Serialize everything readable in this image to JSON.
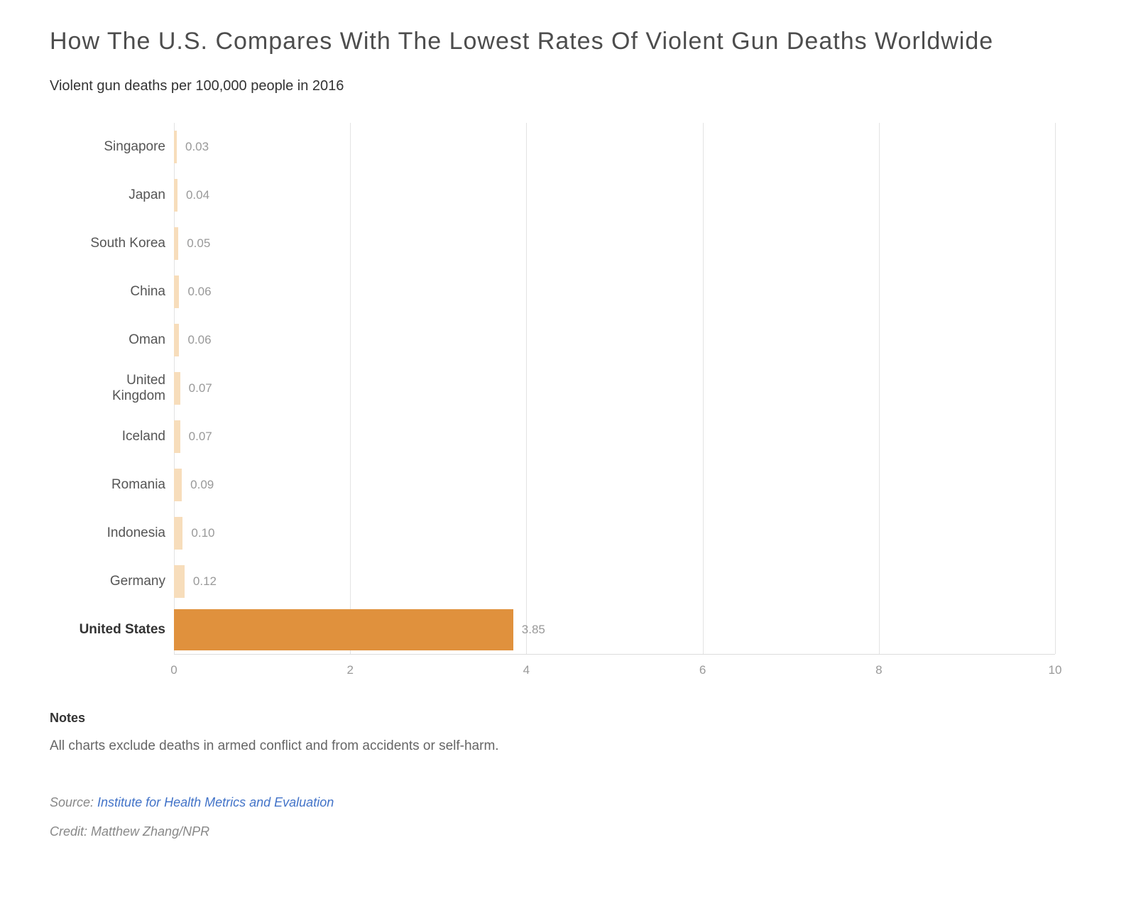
{
  "header": {
    "title": "How The U.S. Compares With The Lowest Rates Of Violent Gun Deaths Worldwide",
    "subtitle": "Violent gun deaths per 100,000 people in 2016"
  },
  "chart_data": {
    "type": "bar",
    "orientation": "horizontal",
    "title": "How The U.S. Compares With The Lowest Rates Of Violent Gun Deaths Worldwide",
    "xlabel": "",
    "ylabel": "",
    "categories": [
      "Singapore",
      "Japan",
      "South Korea",
      "China",
      "Oman",
      "United Kingdom",
      "Iceland",
      "Romania",
      "Indonesia",
      "Germany",
      "United States"
    ],
    "values": [
      0.03,
      0.04,
      0.05,
      0.06,
      0.06,
      0.07,
      0.07,
      0.09,
      0.1,
      0.12,
      3.85
    ],
    "value_labels": [
      "0.03",
      "0.04",
      "0.05",
      "0.06",
      "0.06",
      "0.07",
      "0.07",
      "0.09",
      "0.10",
      "0.12",
      "3.85"
    ],
    "highlight_category": "United States",
    "xlim": [
      0,
      10
    ],
    "x_ticks": [
      0,
      2,
      4,
      6,
      8,
      10
    ],
    "x_tick_labels": [
      "0",
      "2",
      "4",
      "6",
      "8",
      "10"
    ],
    "grid": true,
    "legend": "none",
    "bar_color": "#f7ddbb",
    "highlight_color": "#e0913d"
  },
  "notes": {
    "heading": "Notes",
    "text": "All charts exclude deaths in armed conflict and from accidents or self-harm."
  },
  "source": {
    "prefix": "Source: ",
    "link_text": "Institute for Health Metrics and Evaluation"
  },
  "credit": {
    "text": "Credit: Matthew Zhang/NPR"
  },
  "colors": {
    "bar": "#f7ddbb",
    "highlight": "#e0913d",
    "gridline": "#e3e3e3",
    "link": "#4273c8"
  }
}
